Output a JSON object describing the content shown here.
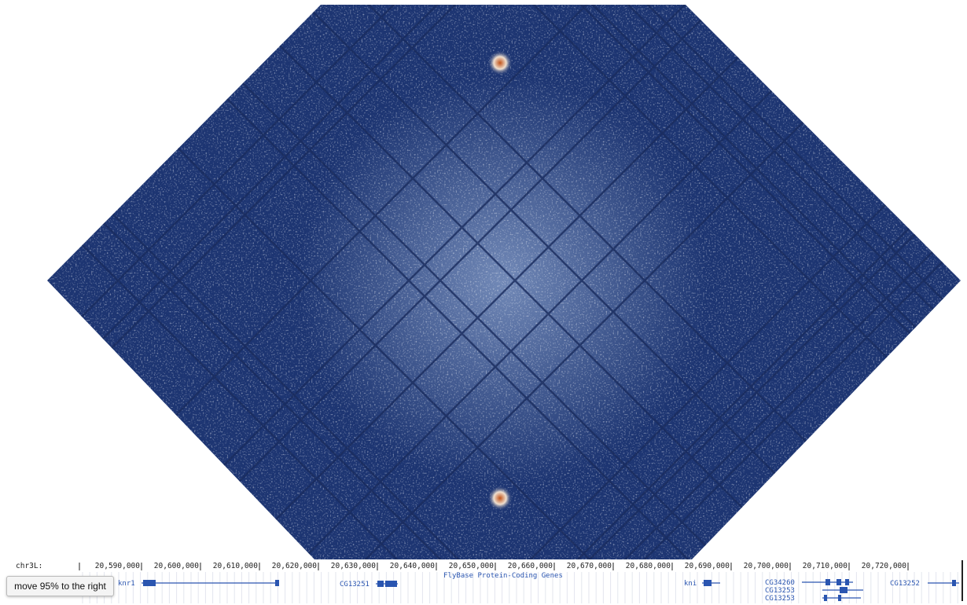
{
  "ruler": {
    "chrom": "chr3L:",
    "ticks": [
      "20,590,000",
      "20,600,000",
      "20,610,000",
      "20,620,000",
      "20,630,000",
      "20,640,000",
      "20,650,000",
      "20,660,000",
      "20,670,000",
      "20,680,000",
      "20,690,000",
      "20,700,000",
      "20,710,000",
      "20,720,000"
    ]
  },
  "track": {
    "title": "FlyBase Protein-Coding Genes",
    "genes": [
      {
        "label": "knr1"
      },
      {
        "label": "CG13251"
      },
      {
        "label": "kni"
      },
      {
        "label": "CG34260"
      },
      {
        "label": "CG13253"
      },
      {
        "label": "CG13253"
      },
      {
        "label": "CG13252"
      }
    ]
  },
  "tooltip": "move 95% to the right"
}
